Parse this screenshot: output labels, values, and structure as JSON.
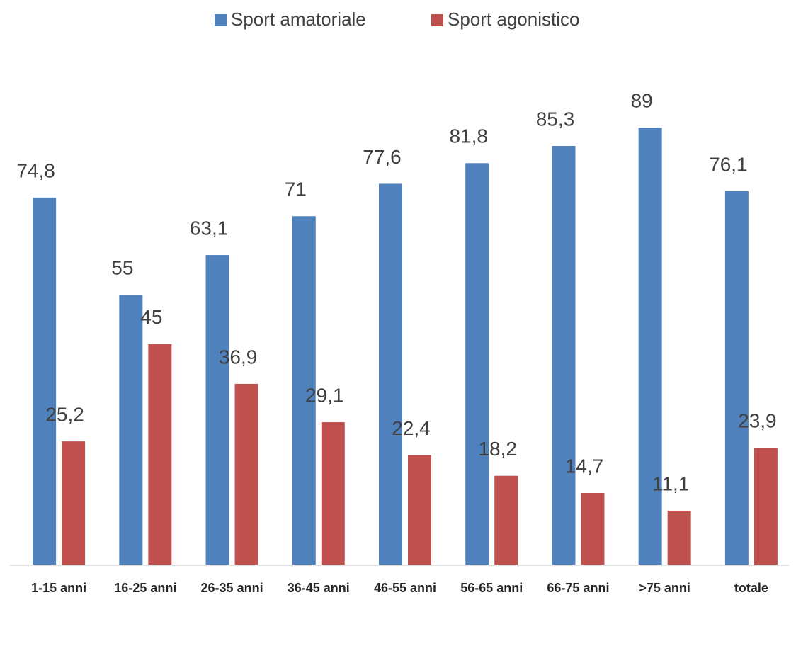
{
  "chart_data": {
    "type": "bar",
    "categories": [
      "1-15 anni",
      "16-25 anni",
      "26-35 anni",
      "36-45 anni",
      "46-55 anni",
      "56-65 anni",
      "66-75 anni",
      ">75 anni",
      "totale"
    ],
    "series": [
      {
        "name": "Sport amatoriale",
        "color": "#4f81bd",
        "values": [
          74.8,
          55,
          63.1,
          71,
          77.6,
          81.8,
          85.3,
          89,
          76.1
        ],
        "value_labels": [
          "74,8",
          "55",
          "63,1",
          "71",
          "77,6",
          "81,8",
          "85,3",
          "89",
          "76,1"
        ]
      },
      {
        "name": "Sport agonistico",
        "color": "#c0504d",
        "values": [
          25.2,
          45,
          36.9,
          29.1,
          22.4,
          18.2,
          14.7,
          11.1,
          23.9
        ],
        "value_labels": [
          "25,2",
          "45",
          "36,9",
          "29,1",
          "22,4",
          "18,2",
          "14,7",
          "11,1",
          "23,9"
        ]
      }
    ],
    "ylim": [
      0,
      100
    ],
    "legend": "top"
  }
}
